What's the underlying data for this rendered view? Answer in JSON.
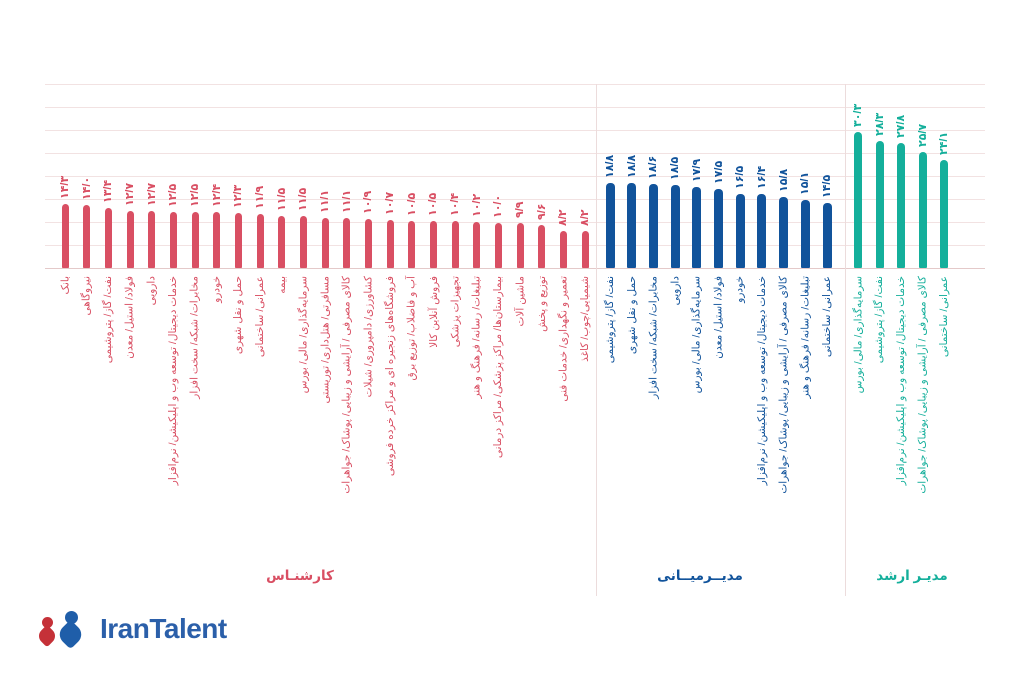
{
  "logo": {
    "text": "IranTalent",
    "colors": {
      "red": "#c53138",
      "blue": "#1f5ea9"
    }
  },
  "chart_data": {
    "type": "bar",
    "direction": "rtl",
    "gridlines": true,
    "ylim": [
      0,
      32
    ],
    "groups": [
      {
        "label": "کارشنـاس",
        "color": "#d94f63",
        "categories": [
          "بانک",
          "نیروگاهی",
          "نفت/ گاز/ پتروشیمی",
          "فولاد/ استیل/ معدن",
          "دارویی",
          "خدمات دیجیتال/ توسعه وب و اپلیکیشن/ نرم‌افزار",
          "مخابرات/ شبکه/ سخت افزار",
          "خودرو",
          "حمل و نقل شهری",
          "عمرانی/ ساختمانی",
          "بیمه",
          "سرمایه‌گذاری/ مالی/ بورس",
          "مسافرتی/ هتل‌داری/ توریستی",
          "کالای مصرفی / آرایشی و زیبایی/ پوشاک/ جواهرات",
          "کشاورزی/ دامپروری/ شیلات",
          "فروشگاه‌های زنجیره ای و مراکز خرده فروشی",
          "آب و فاضلاب/ توزیع برق",
          "فروش آنلاین کالا",
          "تجهیزات پزشکی",
          "تبلیغات/ رسانه/ فرهنگ و هنر",
          "بیمارستان‌ها/ مراکز پزشکی/ مراکز درمانی",
          "ماشین آلات",
          "توزیع و پخش",
          "تعمیر و نگهداری/ خدمات فنی",
          "شیمیایی/چوب/ کاغذ"
        ],
        "values": [
          14.3,
          14.0,
          13.4,
          12.7,
          12.7,
          12.5,
          12.5,
          12.4,
          12.3,
          11.9,
          11.5,
          11.5,
          11.1,
          11.1,
          10.9,
          10.7,
          10.5,
          10.5,
          10.4,
          10.2,
          10.0,
          9.9,
          9.6,
          8.2,
          8.2
        ],
        "value_labels": [
          "۱۴/۳",
          "۱۴/۰",
          "۱۳/۴",
          "۱۲/۷",
          "۱۲/۷",
          "۱۲/۵",
          "۱۲/۵",
          "۱۲/۴",
          "۱۲/۳",
          "۱۱/۹",
          "۱۱/۵",
          "۱۱/۵",
          "۱۱/۱",
          "۱۱/۱",
          "۱۰/۹",
          "۱۰/۷",
          "۱۰/۵",
          "۱۰/۵",
          "۱۰/۴",
          "۱۰/۲",
          "۱۰/۰",
          "۹/۹",
          "۹/۶",
          "۸/۲",
          "۸/۲"
        ]
      },
      {
        "label": "مدیــرمیــانی",
        "color": "#11539b",
        "categories": [
          "نفت/ گاز/ پتروشیمی",
          "حمل و نقل شهری",
          "مخابرات/ شبکه/ سخت افزار",
          "دارویی",
          "سرمایه‌گذاری/ مالی/ بورس",
          "فولاد/ استیل/ معدن",
          "خودرو",
          "خدمات دیجیتال/ توسعه وب و اپلیکیشن/ نرم‌افزار",
          "کالای مصرفی / آرایشی و زیبایی/ پوشاک/ جواهرات",
          "تبلیغات/ رسانه/ فرهنگ و هنر",
          "عمرانی/ ساختمانی"
        ],
        "values": [
          18.8,
          18.8,
          18.6,
          18.5,
          17.9,
          17.5,
          16.5,
          16.4,
          15.8,
          15.1,
          14.5
        ],
        "value_labels": [
          "۱۸/۸",
          "۱۸/۸",
          "۱۸/۶",
          "۱۸/۵",
          "۱۷/۹",
          "۱۷/۵",
          "۱۶/۵",
          "۱۶/۴",
          "۱۵/۸",
          "۱۵/۱",
          "۱۴/۵"
        ]
      },
      {
        "label": "مدیـر ارشد",
        "color": "#14af9b",
        "categories": [
          "سرمایه‌گذاری/ مالی/ بورس",
          "نفت/ گاز/ پتروشیمی",
          "خدمات دیجیتال/ توسعه وب و اپلیکیشن/ نرم‌افزار",
          "کالای مصرفی / آرایشی و زیبایی/ پوشاک/ جواهرات",
          "عمرانی/ ساختمانی"
        ],
        "values": [
          30.3,
          28.3,
          27.8,
          25.7,
          24.1
        ],
        "value_labels": [
          "۳۰/۳",
          "۲۸/۳",
          "۲۷/۸",
          "۲۵/۷",
          "۲۴/۱"
        ]
      }
    ]
  }
}
